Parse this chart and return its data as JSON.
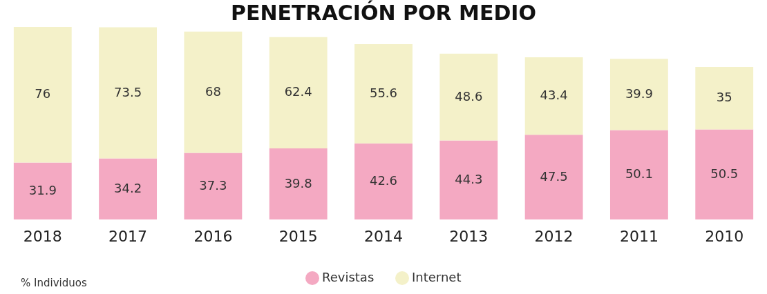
{
  "chart_data": {
    "type": "bar",
    "title": "PENETRACIÓN POR MEDIO",
    "stacked": true,
    "data_labels": true,
    "legend": "bottom",
    "categories": [
      "2018",
      "2017",
      "2016",
      "2015",
      "2014",
      "2013",
      "2012",
      "2011",
      "2010"
    ],
    "series": [
      {
        "name": "Revistas",
        "color": "#f4a9c2",
        "values": [
          31.9,
          34.2,
          37.3,
          39.8,
          42.6,
          44.3,
          47.5,
          50.1,
          50.5
        ]
      },
      {
        "name": "Internet",
        "color": "#f4f1c9",
        "values": [
          76,
          73.5,
          68,
          62.4,
          55.6,
          48.6,
          43.4,
          39.9,
          35
        ]
      }
    ],
    "annotations": [
      "% Individuos"
    ]
  }
}
